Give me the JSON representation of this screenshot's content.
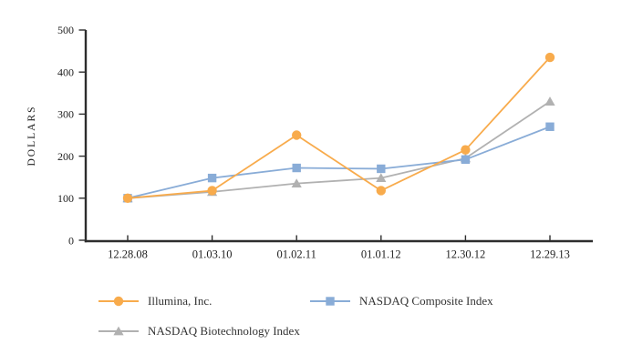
{
  "chart_data": {
    "type": "line",
    "title": "",
    "xlabel": "",
    "ylabel": "DOLLARS",
    "ylim": [
      0,
      500
    ],
    "ytick_values": [
      0,
      100,
      200,
      300,
      400,
      500
    ],
    "ytick_labels": [
      "0",
      "100",
      "200",
      "300",
      "400",
      "500"
    ],
    "categories": [
      "12.28.08",
      "01.03.10",
      "01.02.11",
      "01.01.12",
      "12.30.12",
      "12.29.13"
    ],
    "grid": false,
    "legend_position": "bottom",
    "axis_color": "#2d2d2d",
    "text_color": "#222222",
    "series": [
      {
        "name": "Illumina, Inc.",
        "marker": "circle",
        "color": "#f8ab4c",
        "values": [
          100,
          118,
          250,
          118,
          215,
          435
        ],
        "z": 3
      },
      {
        "name": "NASDAQ Composite Index",
        "marker": "square",
        "color": "#89acd7",
        "values": [
          100,
          148,
          172,
          170,
          192,
          270
        ],
        "z": 2
      },
      {
        "name": "NASDAQ Biotechnology Index",
        "marker": "triangle",
        "color": "#b1b1b1",
        "values": [
          100,
          115,
          135,
          148,
          195,
          330
        ],
        "z": 1
      }
    ]
  }
}
